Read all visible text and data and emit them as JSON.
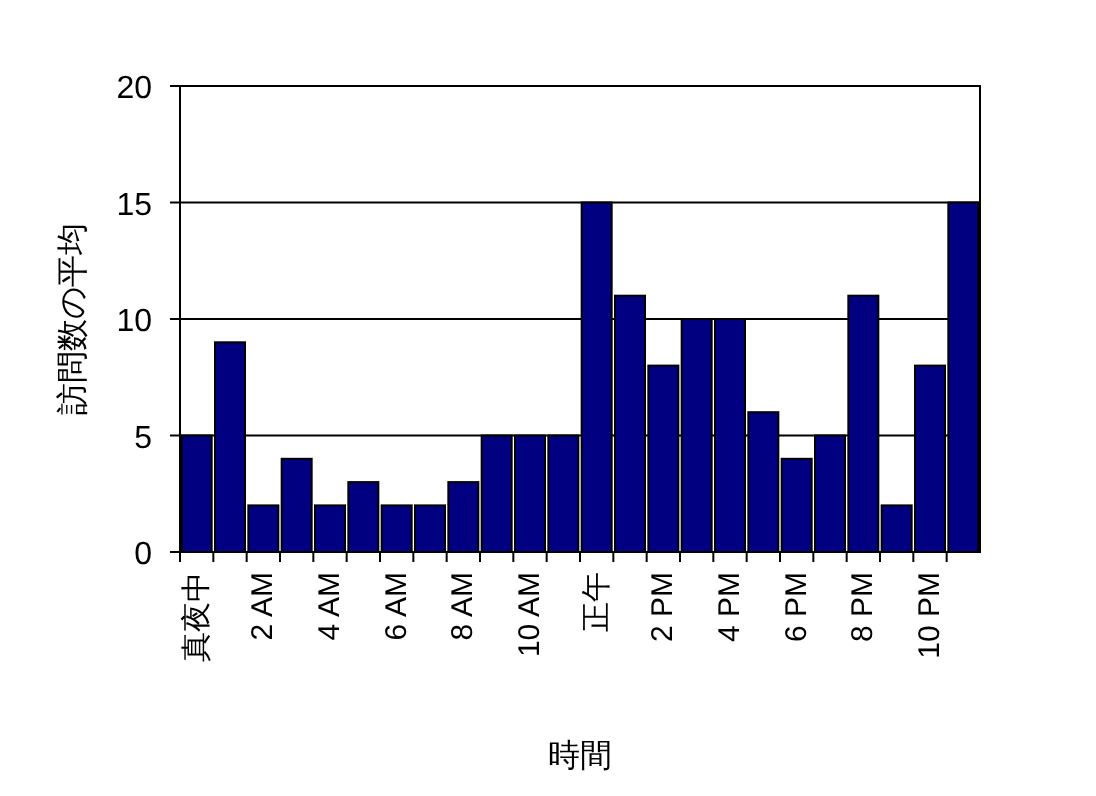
{
  "chart_data": {
    "type": "bar",
    "xlabel": "時間",
    "ylabel": "訪問数の平均",
    "categories": [
      "真夜中",
      null,
      "2 AM",
      null,
      "4 AM",
      null,
      "6 AM",
      null,
      "8 AM",
      null,
      "10 AM",
      null,
      "正午",
      null,
      "2 PM",
      null,
      "4 PM",
      null,
      "6 PM",
      null,
      "8 PM",
      null,
      "10 PM",
      null
    ],
    "values": [
      5,
      9,
      2,
      4,
      2,
      3,
      2,
      2,
      3,
      5,
      5,
      5,
      15,
      11,
      8,
      10,
      10,
      6,
      4,
      5,
      11,
      2,
      8,
      15
    ],
    "color": "#000080",
    "ylim": [
      0,
      20
    ],
    "yticks": [
      0,
      5,
      10,
      15,
      20
    ],
    "grid": "y"
  }
}
